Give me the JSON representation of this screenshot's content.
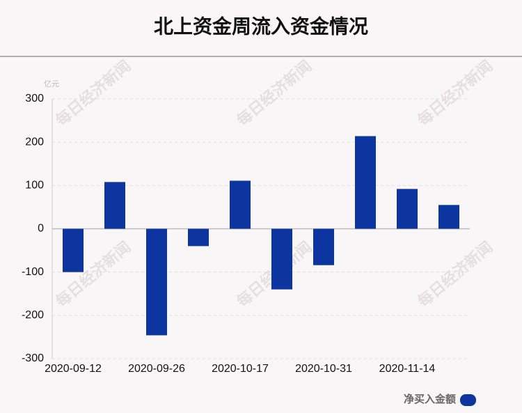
{
  "chart_data": {
    "type": "bar",
    "title": "北上资金周流入资金情况",
    "unit": "亿元",
    "watermark": "每日经济新闻",
    "categories": [
      "2020-09-12",
      null,
      "2020-09-26",
      null,
      "2020-10-17",
      null,
      "2020-10-31",
      null,
      "2020-11-14",
      null
    ],
    "series": [
      {
        "name": "净买入金额",
        "color": "#0c35a0",
        "values": [
          -100,
          108,
          -246,
          -40,
          111,
          -140,
          -84,
          214,
          92,
          55
        ]
      }
    ],
    "ylim": [
      -300,
      300
    ],
    "yticks": [
      -300,
      -200,
      -100,
      0,
      100,
      200,
      300
    ],
    "grid": true,
    "legend": "bottom-right"
  }
}
